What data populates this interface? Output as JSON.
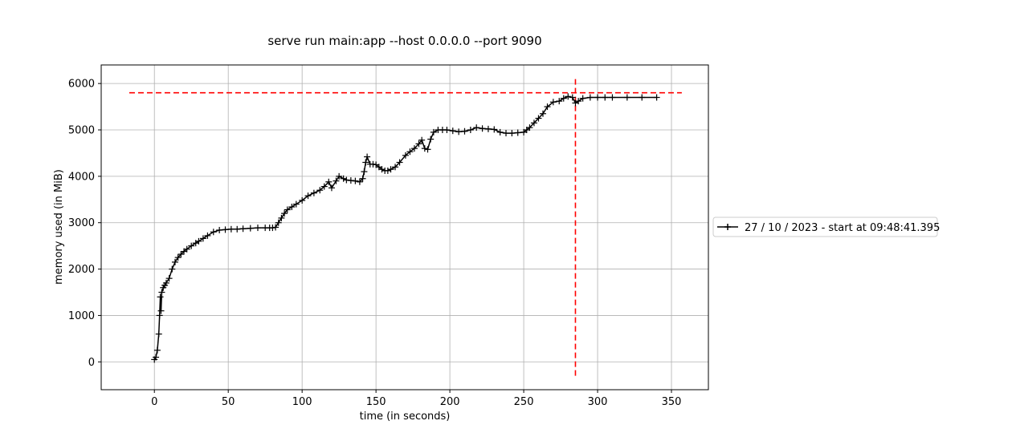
{
  "chart_data": {
    "type": "line",
    "title": "serve run main:app --host 0.0.0.0 --port 9090",
    "xlabel": "time (in seconds)",
    "ylabel": "memory used (in MiB)",
    "xlim": [
      -36,
      375
    ],
    "ylim": [
      -600,
      6400
    ],
    "xticks": [
      0,
      50,
      100,
      150,
      200,
      250,
      300,
      350
    ],
    "yticks": [
      0,
      1000,
      2000,
      3000,
      4000,
      5000,
      6000
    ],
    "grid": true,
    "legend_position": "right",
    "colors": {
      "series": "#000000",
      "marker_line": "#ff0000"
    },
    "series": [
      {
        "name": "27 / 10 / 2023 - start at 09:48:41.395",
        "marker": "+",
        "x": [
          0,
          1,
          2,
          3,
          3.5,
          4,
          4.5,
          5,
          6,
          7,
          8,
          10,
          12,
          14,
          16,
          18,
          20,
          22,
          25,
          28,
          30,
          33,
          36,
          40,
          44,
          48,
          52,
          56,
          60,
          65,
          70,
          75,
          78,
          80,
          82,
          84,
          86,
          88,
          90,
          93,
          96,
          100,
          104,
          108,
          112,
          115,
          118,
          120,
          123,
          125,
          128,
          130,
          133,
          136,
          139,
          141,
          142,
          143,
          144,
          146,
          148,
          150,
          152,
          154,
          156,
          158,
          160,
          163,
          166,
          170,
          173,
          176,
          179,
          181,
          183,
          185,
          187,
          189,
          192,
          195,
          198,
          202,
          206,
          210,
          214,
          218,
          222,
          226,
          230,
          234,
          238,
          242,
          246,
          250,
          252,
          254,
          257,
          260,
          263,
          266,
          270,
          274,
          277,
          280,
          283,
          285,
          287,
          290,
          295,
          300,
          305,
          310,
          320,
          330,
          340
        ],
        "y": [
          50,
          100,
          250,
          600,
          1000,
          1400,
          1100,
          1500,
          1600,
          1650,
          1700,
          1800,
          2000,
          2150,
          2250,
          2320,
          2380,
          2430,
          2500,
          2560,
          2600,
          2660,
          2720,
          2800,
          2840,
          2850,
          2860,
          2860,
          2870,
          2880,
          2890,
          2890,
          2890,
          2890,
          2900,
          3000,
          3100,
          3200,
          3280,
          3340,
          3400,
          3480,
          3580,
          3640,
          3700,
          3780,
          3880,
          3750,
          3900,
          4000,
          3950,
          3920,
          3910,
          3900,
          3880,
          3950,
          4100,
          4300,
          4420,
          4260,
          4260,
          4250,
          4200,
          4150,
          4120,
          4120,
          4150,
          4200,
          4300,
          4450,
          4530,
          4600,
          4700,
          4780,
          4600,
          4580,
          4800,
          4950,
          5000,
          5000,
          5000,
          4980,
          4960,
          4970,
          5000,
          5050,
          5030,
          5020,
          5010,
          4950,
          4930,
          4930,
          4940,
          4950,
          5000,
          5050,
          5150,
          5250,
          5350,
          5500,
          5600,
          5620,
          5680,
          5720,
          5700,
          5580,
          5620,
          5680,
          5700,
          5700,
          5700,
          5700,
          5700,
          5700,
          5700
        ]
      }
    ],
    "reference_lines": {
      "horizontal_y": 5800,
      "horizontal_x_range": [
        -17,
        357
      ],
      "vertical_x": 285,
      "vertical_y_range": [
        -300,
        6100
      ]
    }
  }
}
